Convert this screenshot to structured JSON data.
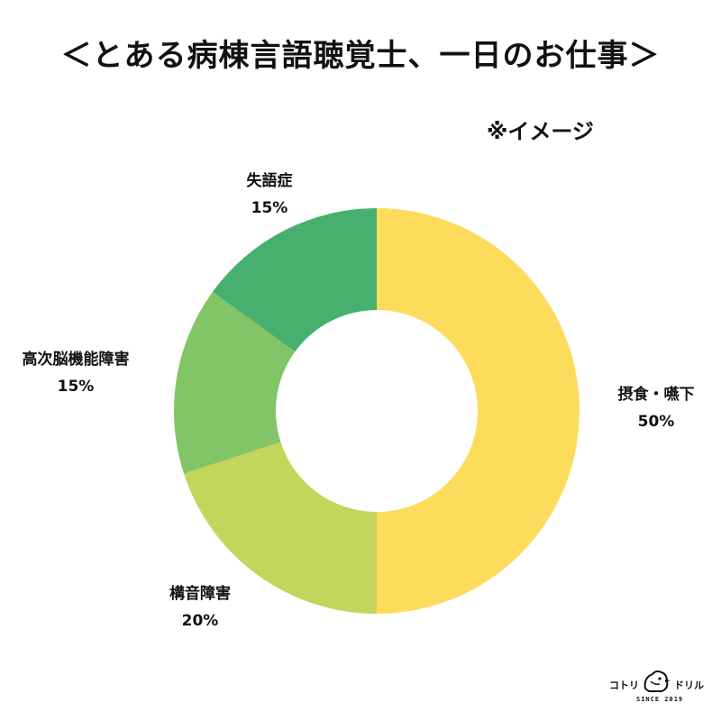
{
  "header": {
    "title": "＜とある病棟言語聴覚士、一日のお仕事＞",
    "note": "※イメージ"
  },
  "chart_data": {
    "type": "pie",
    "donut": true,
    "title": "＜とある病棟言語聴覚士、一日のお仕事＞",
    "slices": [
      {
        "label": "摂食・嚥下",
        "value": 50,
        "value_label": "50%",
        "color": "#FDDC5C"
      },
      {
        "label": "構音障害",
        "value": 20,
        "value_label": "20%",
        "color": "#C2D65B"
      },
      {
        "label": "高次脳機能障害",
        "value": 15,
        "value_label": "15%",
        "color": "#81C566"
      },
      {
        "label": "失語症",
        "value": 15,
        "value_label": "15%",
        "color": "#47B06E"
      }
    ]
  },
  "logo": {
    "left_text": "コトリ",
    "right_text": "ドリル",
    "sub_text": "SINCE 2019"
  }
}
